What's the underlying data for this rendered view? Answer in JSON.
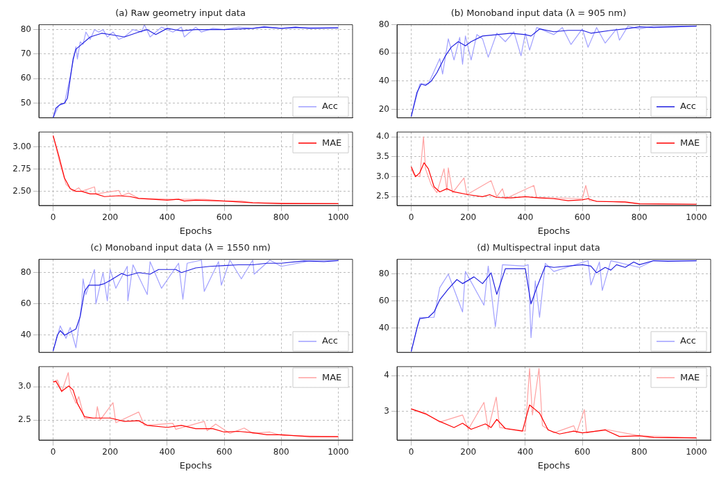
{
  "chart_data": [
    {
      "type": "line",
      "title": "(a) Raw geometry input data",
      "xlim": [
        -50,
        1050
      ],
      "xticks": [
        0,
        200,
        400,
        600,
        800,
        1000
      ],
      "tick_labels": "y",
      "ylim": [
        44,
        82
      ],
      "yticks": [
        50,
        60,
        70,
        80
      ],
      "grid": true,
      "legend": "bottom right",
      "marker": "none",
      "series": [
        {
          "color": "#2020e0",
          "x": [
            0,
            10,
            25,
            40,
            50,
            60,
            70,
            80,
            100,
            130,
            170,
            200,
            250,
            300,
            330,
            360,
            400,
            450,
            500,
            600,
            700,
            740,
            800,
            850,
            900,
            1000
          ],
          "values": [
            44,
            48,
            49.5,
            50,
            52,
            60,
            68,
            72,
            74,
            77,
            78.5,
            78,
            77,
            79,
            80,
            78,
            80.5,
            79.5,
            80,
            80,
            80.5,
            81,
            80.5,
            81,
            80.5,
            80.7
          ]
        },
        {
          "name": "Acc",
          "color": "#a0a0ff",
          "x": [
            0,
            20,
            40,
            60,
            80,
            85,
            95,
            105,
            115,
            130,
            145,
            160,
            175,
            190,
            210,
            230,
            250,
            280,
            310,
            320,
            340,
            360,
            380,
            420,
            450,
            460,
            500,
            520,
            560,
            600,
            650,
            700,
            740,
            800,
            900,
            1000
          ],
          "values": [
            44,
            49,
            50,
            61,
            73,
            68,
            75,
            74,
            79,
            76,
            80,
            79,
            80,
            77,
            79,
            76,
            77,
            80,
            79,
            82,
            77,
            79,
            81,
            79,
            81,
            77,
            81,
            79,
            80.5,
            80,
            81,
            80.5,
            81.3,
            80.5,
            80.8,
            80.7
          ]
        }
      ]
    },
    {
      "type": "line",
      "xlabel": "Epochs",
      "xlim": [
        -50,
        1050
      ],
      "xticks": [
        0,
        200,
        400,
        600,
        800,
        1000
      ],
      "ylim": [
        2.34,
        3.17
      ],
      "yticks": [
        {
          "value": 2.5,
          "label": "2.50"
        },
        {
          "value": 2.75,
          "label": "2.75"
        },
        {
          "value": 3,
          "label": "3.00"
        }
      ],
      "grid": true,
      "legend": "top right",
      "marker": "none",
      "series": [
        {
          "name": "MAE",
          "color": "#ff0000",
          "x": [
            0,
            20,
            40,
            60,
            80,
            100,
            130,
            150,
            180,
            230,
            270,
            300,
            400,
            440,
            460,
            500,
            600,
            700,
            800,
            1000
          ],
          "values": [
            3.13,
            2.9,
            2.65,
            2.53,
            2.5,
            2.5,
            2.47,
            2.47,
            2.44,
            2.45,
            2.44,
            2.42,
            2.4,
            2.41,
            2.39,
            2.4,
            2.39,
            2.37,
            2.36,
            2.36
          ]
        },
        {
          "color": "#ffa0a0",
          "x": [
            0,
            25,
            30,
            45,
            70,
            90,
            100,
            145,
            150,
            230,
            240,
            265,
            300,
            420,
            530,
            600,
            660,
            700,
            1000
          ],
          "values": [
            3.13,
            2.8,
            2.75,
            2.58,
            2.5,
            2.54,
            2.5,
            2.55,
            2.47,
            2.51,
            2.45,
            2.48,
            2.42,
            2.41,
            2.41,
            2.39,
            2.39,
            2.37,
            2.36
          ]
        }
      ]
    },
    {
      "type": "line",
      "title": "(b) Monoband input data (λ = 905 nm)",
      "xlim": [
        -50,
        1050
      ],
      "xticks": [
        0,
        200,
        400,
        600,
        800,
        1000
      ],
      "tick_labels": "y",
      "ylim": [
        14,
        80
      ],
      "yticks": [
        20,
        40,
        60,
        80
      ],
      "grid": true,
      "legend": "bottom right",
      "marker": "none",
      "series": [
        {
          "name": "Acc",
          "color": "#2020e0",
          "x": [
            0,
            20,
            35,
            50,
            70,
            90,
            120,
            140,
            165,
            190,
            210,
            250,
            300,
            350,
            400,
            420,
            450,
            500,
            550,
            600,
            630,
            700,
            750,
            800,
            850,
            1000
          ],
          "values": [
            15,
            32,
            38,
            37,
            40,
            46,
            58,
            64,
            68,
            65,
            68,
            72,
            73,
            74,
            73,
            72,
            77,
            75,
            76,
            76,
            74,
            76,
            77,
            78.5,
            78,
            79
          ]
        },
        {
          "color": "#a0a0ff",
          "x": [
            0,
            30,
            60,
            100,
            110,
            130,
            150,
            170,
            180,
            190,
            210,
            230,
            250,
            270,
            300,
            330,
            360,
            385,
            400,
            415,
            440,
            500,
            530,
            560,
            600,
            620,
            650,
            680,
            720,
            730,
            760,
            800,
            850,
            1000
          ],
          "values": [
            15,
            38,
            38,
            56,
            45,
            70,
            55,
            71,
            52,
            72,
            55,
            73,
            70,
            57,
            74,
            68,
            75,
            58,
            74,
            62,
            78,
            73,
            78,
            66,
            77,
            64,
            78,
            67,
            77,
            69,
            79,
            77,
            79,
            79
          ]
        }
      ]
    },
    {
      "type": "line",
      "xlabel": "Epochs",
      "xlim": [
        -50,
        1050
      ],
      "xticks": [
        0,
        200,
        400,
        600,
        800,
        1000
      ],
      "ylim": [
        2.28,
        4.12
      ],
      "yticks": [
        2.5,
        {
          "value": 3,
          "label": "3.0"
        },
        3.5,
        {
          "value": 4,
          "label": "4.0"
        }
      ],
      "grid": true,
      "legend": "top right",
      "marker": "none",
      "series": [
        {
          "name": "MAE",
          "color": "#ff0000",
          "x": [
            0,
            15,
            30,
            45,
            60,
            80,
            100,
            125,
            150,
            200,
            250,
            275,
            300,
            350,
            400,
            450,
            500,
            550,
            600,
            620,
            650,
            750,
            800,
            1000
          ],
          "values": [
            3.25,
            3.0,
            3.1,
            3.35,
            3.2,
            2.75,
            2.62,
            2.7,
            2.62,
            2.55,
            2.5,
            2.55,
            2.48,
            2.47,
            2.5,
            2.47,
            2.45,
            2.4,
            2.42,
            2.45,
            2.38,
            2.37,
            2.32,
            2.31
          ]
        },
        {
          "color": "#ffa0a0",
          "x": [
            0,
            10,
            30,
            43,
            50,
            70,
            90,
            115,
            125,
            130,
            145,
            185,
            195,
            280,
            300,
            320,
            330,
            430,
            440,
            600,
            612,
            625,
            700,
            800,
            1000
          ],
          "values": [
            3.2,
            3.05,
            3.0,
            4.0,
            3.2,
            2.8,
            2.6,
            3.2,
            2.65,
            3.22,
            2.6,
            2.97,
            2.55,
            2.9,
            2.5,
            2.7,
            2.45,
            2.78,
            2.48,
            2.45,
            2.78,
            2.4,
            2.38,
            2.32,
            2.31
          ]
        }
      ]
    },
    {
      "type": "line",
      "title": "(c) Monoband input data (λ = 1550 nm)",
      "xlim": [
        -50,
        1050
      ],
      "xticks": [
        0,
        200,
        400,
        600,
        800,
        1000
      ],
      "tick_labels": "y",
      "ylim": [
        29,
        88.5
      ],
      "yticks": [
        40,
        60,
        80
      ],
      "grid": true,
      "legend": "bottom right",
      "marker": "none",
      "series": [
        {
          "color": "#2020e0",
          "x": [
            0,
            15,
            25,
            40,
            60,
            80,
            95,
            110,
            125,
            160,
            180,
            200,
            240,
            260,
            300,
            340,
            370,
            400,
            430,
            450,
            500,
            550,
            600,
            650,
            700,
            750,
            800,
            880,
            950,
            1000
          ],
          "values": [
            30,
            40,
            43,
            40,
            42,
            44,
            52,
            68,
            72,
            72,
            73,
            75,
            79.5,
            78,
            80,
            79,
            82,
            82,
            82,
            80,
            83,
            84,
            84.5,
            85,
            85,
            86,
            86,
            87.5,
            87,
            87.7
          ]
        },
        {
          "name": "Acc",
          "color": "#a0a0ff",
          "x": [
            0,
            25,
            45,
            60,
            80,
            100,
            105,
            115,
            145,
            150,
            175,
            190,
            200,
            220,
            260,
            262,
            280,
            330,
            340,
            380,
            440,
            455,
            470,
            520,
            530,
            580,
            590,
            620,
            660,
            700,
            705,
            760,
            800,
            900,
            1000
          ],
          "values": [
            30,
            46,
            38,
            45,
            32,
            60,
            76,
            66,
            82,
            60,
            80,
            62,
            82,
            70,
            84,
            62,
            85,
            66,
            87,
            70,
            86,
            63,
            86,
            88,
            68,
            87,
            72,
            88,
            76,
            88,
            79,
            88,
            84,
            87.5,
            87.7
          ]
        }
      ]
    },
    {
      "type": "line",
      "xlabel": "Epochs",
      "xlim": [
        -50,
        1050
      ],
      "xticks": [
        0,
        200,
        400,
        600,
        800,
        1000
      ],
      "ylim": [
        2.2,
        3.3
      ],
      "yticks": [
        2.5,
        {
          "value": 3,
          "label": "3.0"
        }
      ],
      "grid": true,
      "legend": "top right",
      "marker": "none",
      "series": [
        {
          "color": "#ff0000",
          "x": [
            0,
            10,
            30,
            55,
            70,
            85,
            110,
            140,
            200,
            250,
            300,
            330,
            400,
            450,
            500,
            560,
            600,
            650,
            700,
            750,
            800,
            900,
            1000
          ],
          "values": [
            3.07,
            3.08,
            2.93,
            3.01,
            2.95,
            2.75,
            2.55,
            2.53,
            2.53,
            2.48,
            2.49,
            2.42,
            2.39,
            2.42,
            2.37,
            2.37,
            2.32,
            2.33,
            2.31,
            2.28,
            2.28,
            2.25,
            2.25
          ]
        },
        {
          "name": "MAE",
          "color": "#ffa0a0",
          "x": [
            0,
            15,
            30,
            53,
            60,
            80,
            90,
            110,
            150,
            155,
            165,
            210,
            220,
            300,
            320,
            420,
            430,
            530,
            540,
            570,
            620,
            670,
            700,
            760,
            800,
            1000
          ],
          "values": [
            3.07,
            3.1,
            2.92,
            3.21,
            2.95,
            2.75,
            2.85,
            2.52,
            2.53,
            2.7,
            2.5,
            2.76,
            2.46,
            2.62,
            2.42,
            2.45,
            2.36,
            2.48,
            2.34,
            2.44,
            2.3,
            2.38,
            2.3,
            2.32,
            2.27,
            2.25
          ]
        }
      ]
    },
    {
      "type": "line",
      "title": "(d) Multispectral input data",
      "xlim": [
        -50,
        1050
      ],
      "xticks": [
        0,
        200,
        400,
        600,
        800,
        1000
      ],
      "tick_labels": "y",
      "ylim": [
        22,
        91
      ],
      "yticks": [
        40,
        60,
        80
      ],
      "grid": true,
      "legend": "bottom right",
      "marker": "none",
      "series": [
        {
          "color": "#2020e0",
          "x": [
            0,
            20,
            30,
            60,
            80,
            100,
            130,
            160,
            180,
            220,
            250,
            280,
            300,
            330,
            400,
            420,
            440,
            470,
            500,
            600,
            630,
            650,
            680,
            700,
            720,
            750,
            780,
            800,
            850,
            900,
            1000
          ],
          "values": [
            22.7,
            40,
            47,
            48,
            52,
            61,
            69,
            76,
            73,
            78,
            73,
            81,
            65,
            84,
            84,
            58,
            70,
            86,
            85,
            87,
            86,
            81,
            85,
            83,
            87,
            85,
            89,
            87,
            90,
            89.5,
            90
          ]
        },
        {
          "name": "Acc",
          "color": "#a0a0ff",
          "x": [
            0,
            30,
            80,
            100,
            130,
            180,
            190,
            255,
            270,
            295,
            320,
            395,
            410,
            420,
            435,
            450,
            470,
            500,
            620,
            630,
            660,
            670,
            700,
            800,
            850,
            1000
          ],
          "values": [
            22.7,
            48,
            48,
            70,
            80,
            52,
            82,
            57,
            86,
            41,
            87,
            86,
            87,
            33,
            75,
            48,
            88,
            82,
            90,
            72,
            89,
            68,
            90,
            85,
            90,
            90
          ]
        }
      ]
    },
    {
      "type": "line",
      "xlabel": "Epochs",
      "xlim": [
        -50,
        1050
      ],
      "xticks": [
        0,
        200,
        400,
        600,
        800,
        1000
      ],
      "ylim": [
        2.2,
        4.25
      ],
      "yticks": [
        3,
        4
      ],
      "grid": true,
      "legend": "top right",
      "marker": "none",
      "series": [
        {
          "color": "#ff0000",
          "x": [
            0,
            50,
            100,
            150,
            180,
            210,
            260,
            280,
            300,
            330,
            390,
            415,
            435,
            450,
            480,
            520,
            570,
            600,
            680,
            730,
            800,
            850,
            1000
          ],
          "values": [
            3.07,
            2.93,
            2.72,
            2.55,
            2.67,
            2.5,
            2.65,
            2.55,
            2.78,
            2.52,
            2.45,
            3.18,
            3.05,
            2.95,
            2.48,
            2.37,
            2.45,
            2.4,
            2.48,
            2.3,
            2.32,
            2.27,
            2.26
          ]
        },
        {
          "name": "MAE",
          "color": "#ffa0a0",
          "x": [
            0,
            50,
            100,
            180,
            200,
            255,
            270,
            298,
            310,
            400,
            415,
            425,
            448,
            460,
            500,
            570,
            580,
            607,
            615,
            680,
            800,
            1000
          ],
          "values": [
            3.07,
            2.95,
            2.7,
            2.9,
            2.5,
            3.25,
            2.5,
            3.4,
            2.55,
            2.45,
            4.2,
            2.9,
            4.2,
            2.6,
            2.4,
            2.6,
            2.4,
            3.05,
            2.4,
            2.5,
            2.32,
            2.26
          ]
        }
      ]
    }
  ]
}
